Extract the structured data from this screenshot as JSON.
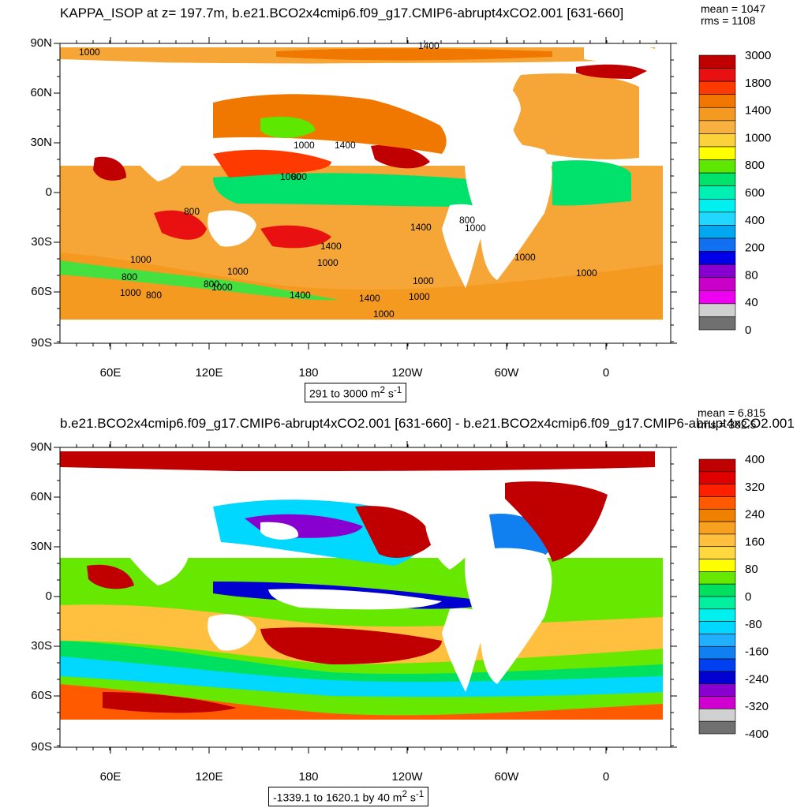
{
  "panels": [
    {
      "id": "top",
      "title": "KAPPA_ISOP at z= 197.7m, b.e21.BCO2x4cmip6.f09_g17.CMIP6-abrupt4xCO2.001 [631-660]",
      "stats": {
        "mean": "mean = 1047",
        "rms": "rms = 1108"
      },
      "lat_labels": [
        "90N",
        "60N",
        "30N",
        "0",
        "30S",
        "60S",
        "90S"
      ],
      "lon_labels": [
        "60E",
        "120E",
        "180",
        "120W",
        "60W",
        "0"
      ],
      "range_text": "291 to 3000 m",
      "units_exp1": "2",
      "units_mid": " s",
      "units_exp2": "-1",
      "colorbar": {
        "labels": [
          "3000",
          "1800",
          "1400",
          "1000",
          "800",
          "600",
          "400",
          "200",
          "80",
          "40",
          "0"
        ],
        "colors": [
          "#c00000",
          "#e81010",
          "#ff3a00",
          "#f07800",
          "#f59a20",
          "#f8b040",
          "#fcd23a",
          "#ffff00",
          "#5ee800",
          "#00e26c",
          "#00f0b4",
          "#00f0f0",
          "#20d8ff",
          "#00a8f0",
          "#1070f0",
          "#0000e8",
          "#8800d0",
          "#c800c8",
          "#f000f0",
          "#d0d0d0",
          "#707070"
        ]
      },
      "contour_labels": [
        "1000",
        "1400",
        "1000",
        "1400",
        "1000",
        "800",
        "800",
        "1400",
        "800",
        "1000",
        "1400",
        "1000",
        "1000",
        "800",
        "1000",
        "800",
        "1000",
        "1000",
        "800",
        "1000",
        "1400",
        "1400",
        "1000",
        "1000",
        "1000",
        "1000"
      ]
    },
    {
      "id": "bottom",
      "title": "b.e21.BCO2x4cmip6.f09_g17.CMIP6-abrupt4xCO2.001 [631-660] - b.e21.BCO2x4cmip6.f09_g17.CMIP6-abrupt4xCO2.001",
      "stats": {
        "mean": "mean = 6.815",
        "rms": "rms = 302.5"
      },
      "lat_labels": [
        "90N",
        "60N",
        "30N",
        "0",
        "30S",
        "60S",
        "90S"
      ],
      "lon_labels": [
        "60E",
        "120E",
        "180",
        "120W",
        "60W",
        "0"
      ],
      "range_text": "-1339.1 to 1620.1 by 40 m",
      "units_exp1": "2",
      "units_mid": " s",
      "units_exp2": "-1",
      "colorbar": {
        "labels": [
          "400",
          "320",
          "240",
          "160",
          "80",
          "0",
          "-80",
          "-160",
          "-240",
          "-320",
          "-400"
        ],
        "colors": [
          "#c00000",
          "#e00000",
          "#ff2000",
          "#ff5a00",
          "#f08000",
          "#f8a020",
          "#ffc040",
          "#ffd840",
          "#ffff00",
          "#66e800",
          "#00e060",
          "#00f0a0",
          "#00f0f0",
          "#00d8ff",
          "#20b0ff",
          "#1080f0",
          "#0040f0",
          "#0000d0",
          "#8800d0",
          "#d000d0",
          "#d0d0d0",
          "#707070"
        ]
      }
    }
  ]
}
